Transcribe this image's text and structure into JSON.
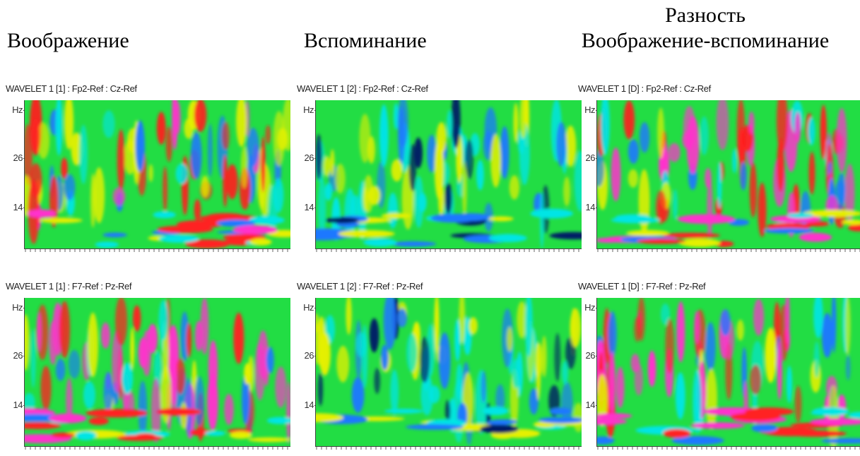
{
  "headers": {
    "col1": "Воображение",
    "col2": "Вспоминание",
    "col3_line1": "Разность",
    "col3_line2": "Воображение-вспоминание"
  },
  "panels": [
    {
      "title": "WAVELET 1 [1] : Fp2-Ref : Cz-Ref"
    },
    {
      "title": "WAVELET 1 [2] : Fp2-Ref : Cz-Ref"
    },
    {
      "title": "WAVELET 1 [D] : Fp2-Ref : Cz-Ref"
    },
    {
      "title": "WAVELET 1 [1] : F7-Ref : Pz-Ref"
    },
    {
      "title": "WAVELET 1 [2] : F7-Ref : Pz-Ref"
    },
    {
      "title": "WAVELET 1 [D] : F7-Ref : Pz-Ref"
    }
  ],
  "chart_data": {
    "type": "heatmap",
    "y_axis_label": "Hz",
    "y_tick_labels": [
      "26",
      "14"
    ],
    "colors": {
      "background": "#22dd44",
      "low": "#001a66",
      "mid_low": "#1e78ff",
      "cyan": "#00e5e5",
      "neutral": "#22dd44",
      "yellow": "#e5f000",
      "high": "#ff2020",
      "max": "#ff33cc"
    }
  }
}
